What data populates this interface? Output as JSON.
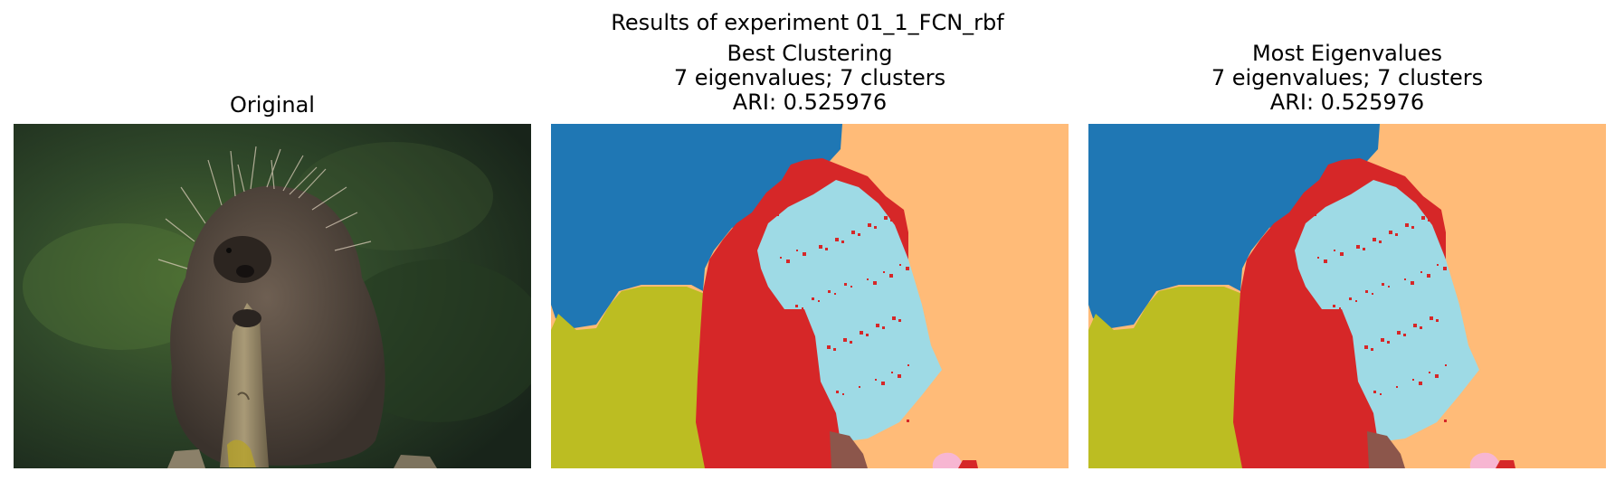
{
  "figure": {
    "suptitle": "Results of experiment 01_1_FCN_rbf",
    "panels": [
      {
        "id": "original",
        "title_lines": [
          "Original"
        ]
      },
      {
        "id": "best",
        "title_lines": [
          "Best Clustering",
          "7 eigenvalues; 7 clusters",
          "ARI: 0.525976"
        ]
      },
      {
        "id": "most",
        "title_lines": [
          "Most Eigenvalues",
          "7 eigenvalues; 7 clusters",
          "ARI: 0.525976"
        ]
      }
    ]
  },
  "segmentation_palette": {
    "blue": "#1f77b4",
    "orange": "#ffbb78",
    "olive": "#bcbd22",
    "red": "#d62728",
    "cyan": "#9edae5",
    "brown": "#8c564b",
    "pink": "#f7b6d2"
  }
}
